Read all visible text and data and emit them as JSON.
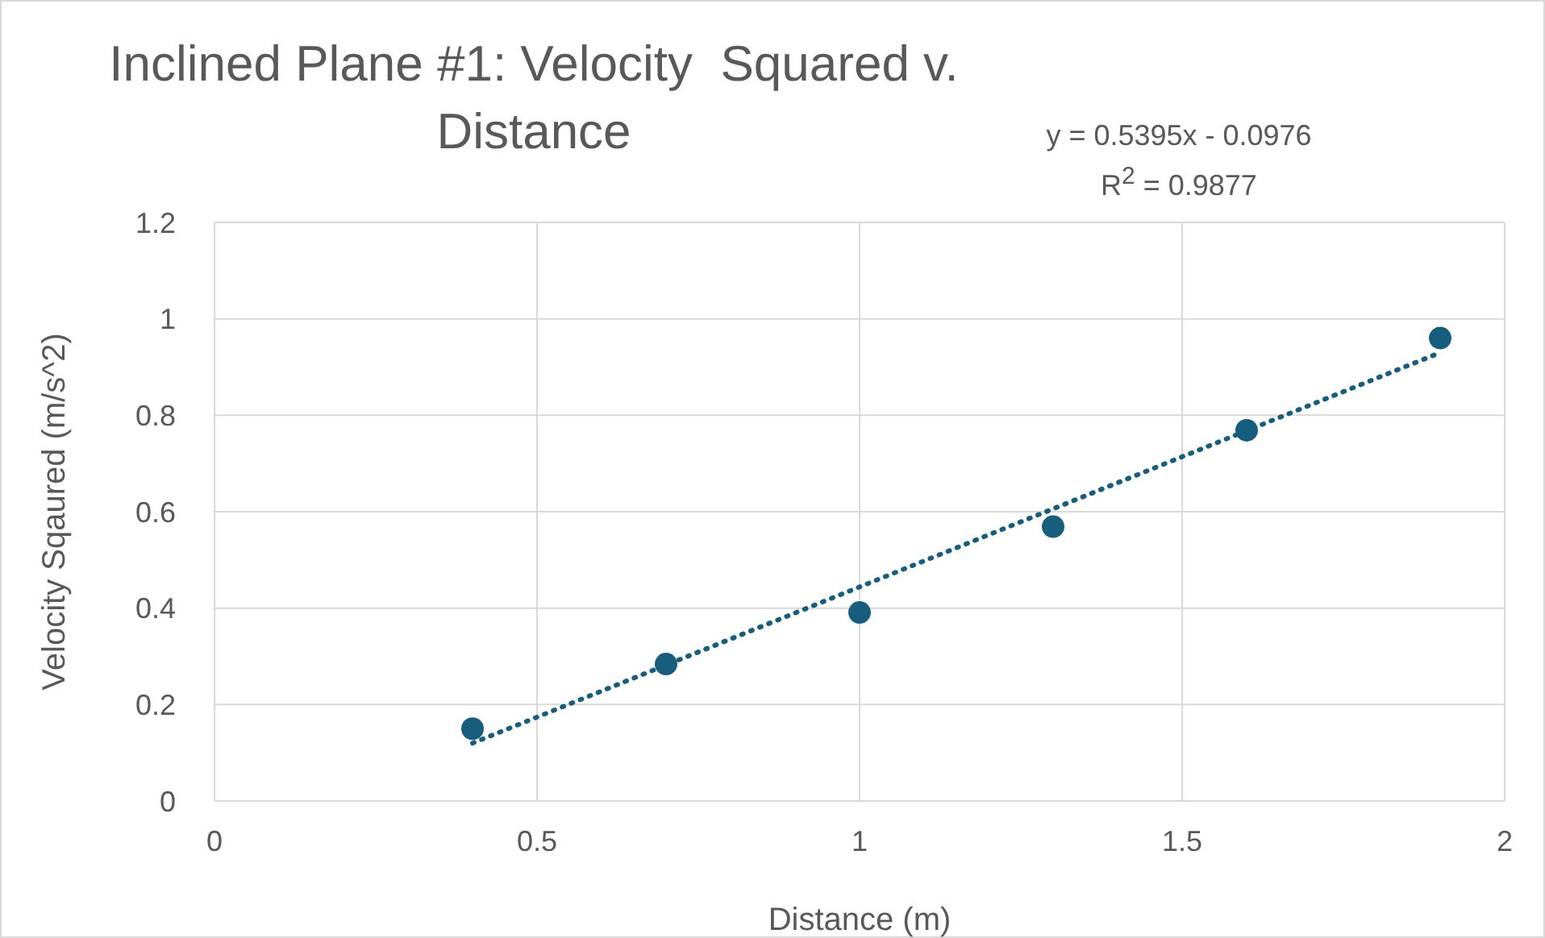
{
  "chart_data": {
    "type": "scatter",
    "title": "Inclined Plane #1: Velocity  Squared v. Distance",
    "xlabel": "Distance (m)",
    "ylabel": "Velocity Sqaured (m/s^2)",
    "annotations": [
      "y = 0.5395x - 0.0976",
      "R$^{2}$ = 0.9877"
    ],
    "x": [
      0.4,
      0.7,
      1.0,
      1.3,
      1.6,
      1.9
    ],
    "series": [
      {
        "color": "#175e7e",
        "values": [
          0.15,
          0.284,
          0.391,
          0.569,
          0.769,
          0.96
        ]
      },
      {
        "type": "line",
        "color": "#175e7e",
        "line_style": "dotted",
        "marker": "none",
        "x": [
          0.4,
          1.9
        ],
        "values": [
          0.12,
          0.93
        ]
      }
    ],
    "xlim": [
      0,
      2
    ],
    "xticks": [
      0,
      0.5,
      1,
      1.5,
      2
    ],
    "ylim": [
      0,
      1.2
    ],
    "yticks": [
      0,
      0.2,
      0.4,
      0.6,
      0.8,
      1,
      1.2
    ],
    "grid": true,
    "marker": "circle"
  }
}
